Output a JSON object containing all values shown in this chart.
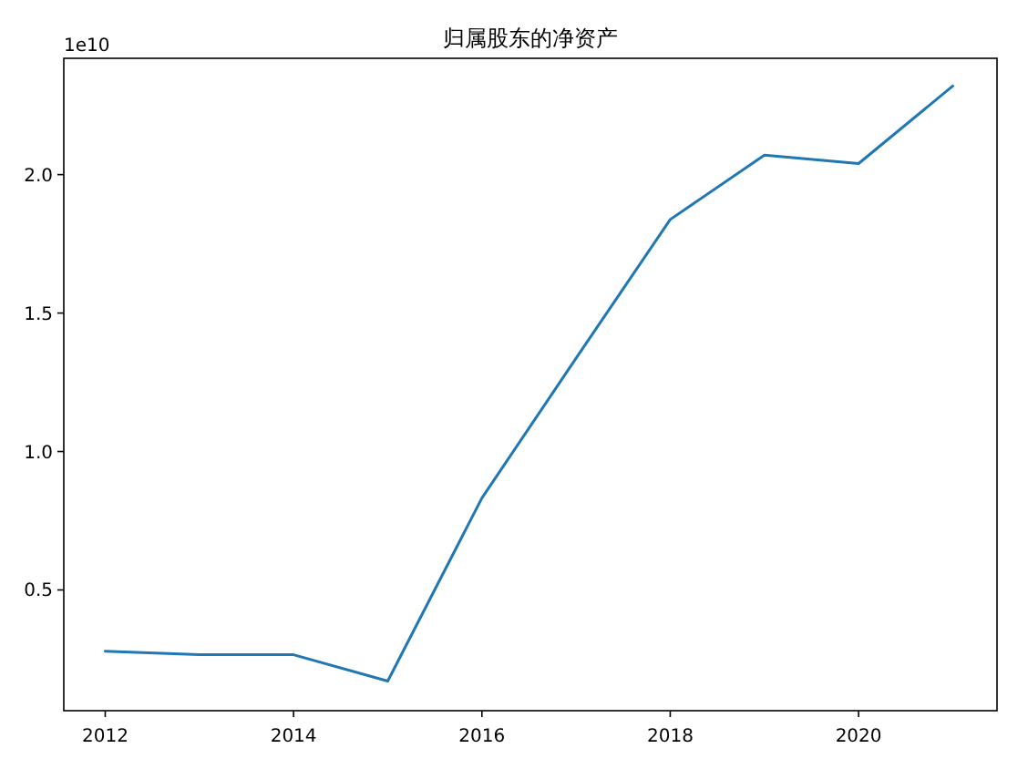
{
  "chart_data": {
    "type": "line",
    "title": "归属股东的净资产",
    "annotations": [
      "1e10"
    ],
    "x": [
      2012,
      2013,
      2014,
      2015,
      2016,
      2017,
      2018,
      2019,
      2020,
      2021
    ],
    "series": [
      {
        "color": "#1f77b4",
        "values": [
          0.279,
          0.266,
          0.266,
          0.171,
          0.832,
          1.337,
          1.838,
          2.07,
          2.04,
          2.32
        ]
      }
    ],
    "xlim": [
      2011.56,
      2021.47
    ],
    "ylim": [
      0.064,
      2.42
    ],
    "xticks": [
      2012,
      2014,
      2016,
      2018,
      2020
    ],
    "yticks": [
      0.5,
      {
        "value": 1.0,
        "label": "1.0"
      },
      {
        "value": 1.5,
        "label": "1.5"
      },
      {
        "value": 2.0,
        "label": "2.0"
      }
    ],
    "grid": false,
    "marker": "none",
    "line_style": "solid"
  }
}
